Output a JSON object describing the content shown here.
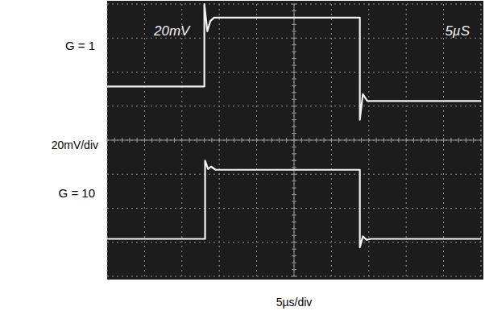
{
  "chart_data": {
    "type": "line",
    "x_label": "5µs/div",
    "y_label": "20mV/div",
    "screen_labels": {
      "volts": "20mV",
      "time": "5µS"
    },
    "xlim": [
      0,
      50
    ],
    "ylim": [
      -80,
      80
    ],
    "xticks": [
      0,
      5,
      10,
      15,
      20,
      25,
      30,
      35,
      40,
      45,
      50
    ],
    "yticks": [
      -80,
      -60,
      -40,
      -20,
      0,
      20,
      40,
      60,
      80
    ],
    "grid": true,
    "tick_labels": false,
    "series": [
      {
        "name": "G = 1",
        "color": "#f2f2f2",
        "x": [
          0,
          13.0,
          13.0,
          13.4,
          13.8,
          14.3,
          33.8,
          33.8,
          34.2,
          34.8,
          50
        ],
        "values": [
          31.5,
          31.5,
          80,
          64,
          70,
          72,
          72,
          12,
          27,
          23,
          23
        ]
      },
      {
        "name": "G = 10",
        "color": "#f2f2f2",
        "x": [
          0,
          13.1,
          13.1,
          13.5,
          13.9,
          14.5,
          33.8,
          33.8,
          34.2,
          34.7,
          35.3,
          50
        ],
        "values": [
          -58,
          -58,
          -12,
          -17,
          -15.5,
          -17.4,
          -17.4,
          -63,
          -56.5,
          -58.5,
          -58,
          -58
        ]
      }
    ]
  }
}
